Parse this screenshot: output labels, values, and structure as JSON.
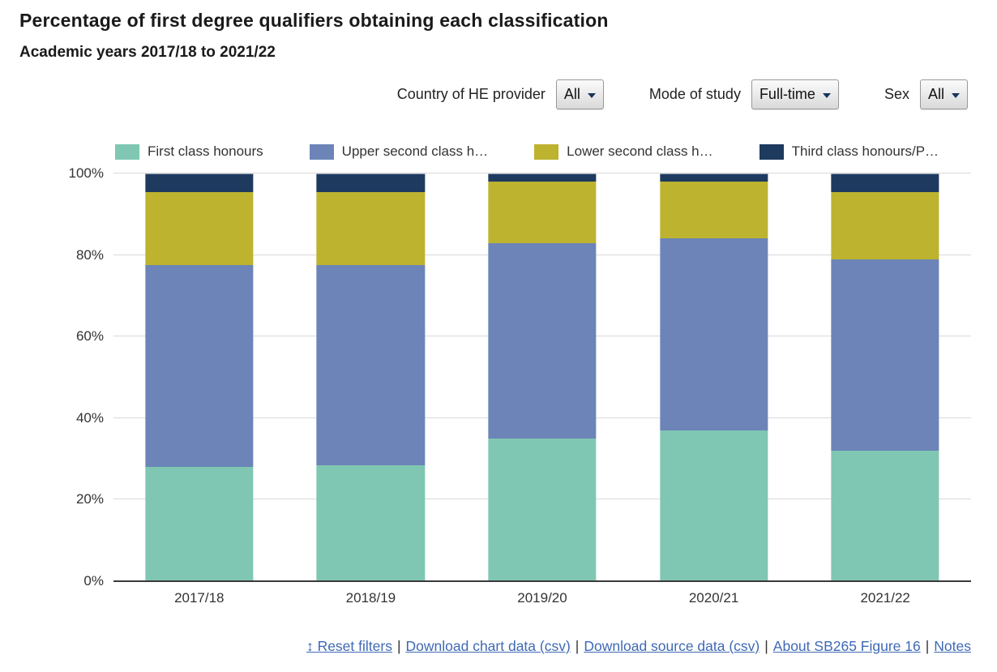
{
  "header": {
    "title": "Percentage of first degree qualifiers obtaining each classification",
    "subtitle": "Academic years 2017/18 to 2021/22"
  },
  "filters": [
    {
      "label": "Country of HE provider",
      "value": "All"
    },
    {
      "label": "Mode of study",
      "value": "Full-time"
    },
    {
      "label": "Sex",
      "value": "All"
    }
  ],
  "chart_data": {
    "type": "bar",
    "stacked": true,
    "title": "Percentage of first degree qualifiers obtaining each classification",
    "subtitle": "Academic years 2017/18 to 2021/22",
    "categories": [
      "2017/18",
      "2018/19",
      "2019/20",
      "2020/21",
      "2021/22"
    ],
    "series": [
      {
        "name": "First class honours",
        "legend_label": "First class honours",
        "color": "#7fc7b2",
        "values": [
          28,
          28.5,
          35,
          37,
          32
        ]
      },
      {
        "name": "Upper second class honours",
        "legend_label": "Upper second class h…",
        "color": "#6c84b8",
        "values": [
          49.5,
          49,
          48,
          47,
          47
        ]
      },
      {
        "name": "Lower second class honours",
        "legend_label": "Lower second class h…",
        "color": "#bdb32f",
        "values": [
          18,
          18,
          15,
          14,
          16.5
        ]
      },
      {
        "name": "Third class honours/Pass",
        "legend_label": "Third class honours/P…",
        "color": "#1e3a5f",
        "values": [
          4.5,
          4.5,
          2,
          2,
          4.5
        ]
      }
    ],
    "xlabel": "",
    "ylabel": "",
    "ylim": [
      0,
      100
    ],
    "yticks": [
      "0%",
      "20%",
      "40%",
      "60%",
      "80%",
      "100%"
    ],
    "grid": true,
    "legend_position": "top"
  },
  "footer": {
    "separator": "|",
    "links": [
      {
        "icon": "↕",
        "text": "Reset filters"
      },
      {
        "text": "Download chart data (csv)"
      },
      {
        "text": "Download source data (csv)"
      },
      {
        "text": "About SB265 Figure 16"
      },
      {
        "text": "Notes"
      }
    ]
  }
}
